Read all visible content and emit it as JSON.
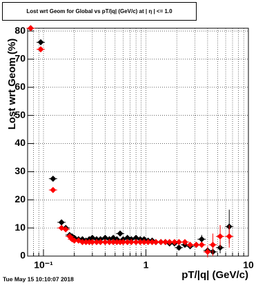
{
  "chart_data": {
    "type": "scatter",
    "title": "Lost wrt Geom for Global vs pT/|q| (GeV/c) at | η | <= 1.0",
    "x_label": "pT/|q| (GeV/c)",
    "y_label": "Lost wrt Geom (%)",
    "footer": "Tue May 15 10:10:07 2018",
    "log_x": true,
    "grid": true,
    "xlim": [
      0.07,
      10
    ],
    "ylim": [
      0,
      81
    ],
    "xticks": [
      {
        "value": 0.1,
        "label": "10⁻¹"
      },
      1,
      10
    ],
    "xminorticks": [
      0.08,
      0.09,
      0.2,
      0.3,
      0.4,
      0.5,
      0.6,
      0.7,
      0.8,
      0.9,
      2,
      3,
      4,
      5,
      6,
      7,
      8,
      9
    ],
    "yticks": [
      0,
      10,
      20,
      30,
      40,
      50,
      60,
      70,
      80
    ],
    "x": [
      0.075,
      0.094,
      0.124,
      0.15,
      0.165,
      0.18,
      0.19,
      0.2,
      0.22,
      0.24,
      0.26,
      0.28,
      0.3,
      0.33,
      0.36,
      0.4,
      0.44,
      0.48,
      0.52,
      0.56,
      0.6,
      0.66,
      0.72,
      0.8,
      0.88,
      0.96,
      1.05,
      1.15,
      1.25,
      1.4,
      1.55,
      1.7,
      1.9,
      2.1,
      2.4,
      2.7,
      3.1,
      3.5,
      4.0,
      4.5,
      5.3,
      6.5
    ],
    "series": [
      {
        "color": "#000000",
        "values": [
          81,
          76,
          27.5,
          12,
          10,
          7.5,
          7,
          6.5,
          6,
          6,
          5.5,
          6,
          6.5,
          6,
          6,
          6.5,
          6,
          6.5,
          6,
          8,
          6,
          6.5,
          6,
          6.5,
          6,
          6,
          5.5,
          5.5,
          5,
          5,
          5,
          4.5,
          4.5,
          3,
          4,
          3.5,
          4,
          6,
          2,
          1.5,
          3,
          10.5
        ],
        "errors": [
          0.5,
          0.5,
          0.5,
          0.5,
          0.5,
          0.5,
          0.5,
          0.5,
          0.5,
          0.5,
          0.5,
          0.5,
          0.5,
          0.5,
          0.5,
          0.5,
          0.5,
          0.5,
          0.5,
          0.5,
          0.5,
          0.5,
          0.5,
          0.5,
          0.5,
          0.5,
          0.5,
          0.5,
          0.5,
          0.5,
          0.5,
          0.5,
          0.5,
          0.7,
          0.8,
          1,
          1,
          1.5,
          1,
          1,
          2,
          6
        ]
      },
      {
        "color": "#ff0000",
        "values": [
          81,
          73.5,
          23.5,
          10,
          9.5,
          7,
          6,
          5.5,
          5.5,
          5,
          5,
          5,
          5,
          5,
          5,
          5,
          5,
          5,
          5,
          5,
          5,
          5,
          5,
          5,
          5,
          5,
          5,
          5,
          5,
          5,
          5,
          5,
          5,
          5,
          5,
          4,
          4,
          4,
          1.5,
          4,
          7,
          7
        ],
        "errors": [
          0.5,
          0.5,
          0.5,
          0.5,
          0.5,
          0.5,
          0.5,
          0.5,
          0.5,
          0.5,
          0.5,
          0.5,
          0.5,
          0.5,
          0.5,
          0.5,
          0.5,
          0.5,
          0.5,
          0.5,
          0.5,
          0.5,
          0.5,
          0.5,
          0.5,
          0.5,
          0.5,
          0.5,
          0.5,
          0.5,
          0.5,
          0.5,
          0.5,
          0.5,
          0.7,
          0.8,
          1,
          1,
          2,
          4,
          4,
          4
        ]
      }
    ]
  }
}
